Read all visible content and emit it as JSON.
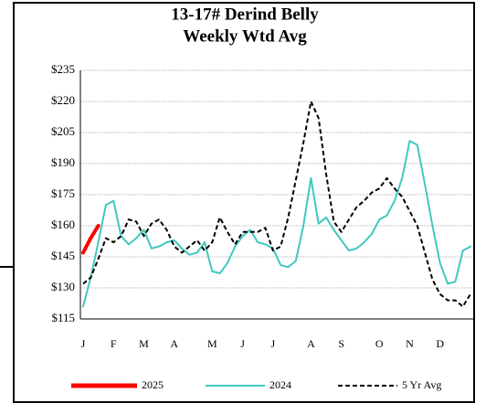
{
  "chart_data": {
    "type": "line",
    "title": "13-17# Derind Belly",
    "subtitle": "Weekly Wtd Avg",
    "categories": [
      "J",
      null,
      null,
      null,
      "F",
      null,
      null,
      null,
      "M",
      null,
      null,
      null,
      "A",
      null,
      null,
      null,
      null,
      "M",
      null,
      null,
      null,
      "J",
      null,
      null,
      null,
      "J",
      null,
      null,
      null,
      null,
      "A",
      null,
      null,
      null,
      "S",
      null,
      null,
      null,
      null,
      "O",
      null,
      null,
      null,
      "N",
      null,
      null,
      null,
      "D",
      null,
      null,
      null,
      null
    ],
    "series": [
      {
        "name": "2025",
        "color": "#ff0000",
        "dash": false,
        "width": 4,
        "values": [
          147,
          154,
          160,
          null,
          null,
          null,
          null,
          null,
          null,
          null,
          null,
          null,
          null,
          null,
          null,
          null,
          null,
          null,
          null,
          null,
          null,
          null,
          null,
          null,
          null,
          null,
          null,
          null,
          null,
          null,
          null,
          null,
          null,
          null,
          null,
          null,
          null,
          null,
          null,
          null,
          null,
          null,
          null,
          null,
          null,
          null,
          null,
          null,
          null,
          null,
          null,
          null
        ]
      },
      {
        "name": "2024",
        "color": "#40c8c0",
        "dash": false,
        "width": 2,
        "values": [
          121,
          135,
          152,
          170,
          172,
          155,
          151,
          154,
          158,
          149,
          150,
          152,
          153,
          149,
          146,
          147,
          152,
          138,
          137,
          142,
          150,
          155,
          158,
          152,
          151,
          149,
          141,
          140,
          143,
          160,
          183,
          161,
          164,
          158,
          153,
          148,
          149,
          152,
          156,
          163,
          165,
          172,
          183,
          201,
          199,
          180,
          160,
          142,
          132,
          133,
          148,
          150
        ]
      },
      {
        "name": "5 Yr Avg",
        "color": "#000000",
        "dash": true,
        "width": 2,
        "values": [
          132,
          135,
          144,
          154,
          152,
          155,
          163,
          162,
          155,
          161,
          163,
          158,
          150,
          147,
          150,
          153,
          148,
          152,
          164,
          157,
          151,
          157,
          157,
          157,
          159,
          148,
          150,
          164,
          182,
          200,
          220,
          212,
          185,
          162,
          157,
          163,
          169,
          172,
          176,
          178,
          183,
          178,
          174,
          167,
          160,
          147,
          134,
          127,
          124,
          124,
          121,
          127
        ]
      }
    ],
    "ylim": [
      115,
      235
    ],
    "yticks": [
      {
        "value": 115,
        "label": "$115"
      },
      {
        "value": 130,
        "label": "$130"
      },
      {
        "value": 145,
        "label": "$145"
      },
      {
        "value": 160,
        "label": "$160"
      },
      {
        "value": 175,
        "label": "$175"
      },
      {
        "value": 190,
        "label": "$190"
      },
      {
        "value": 205,
        "label": "$205"
      },
      {
        "value": 220,
        "label": "$220"
      },
      {
        "value": 235,
        "label": "$235"
      }
    ],
    "grid": true,
    "legend": "bottom"
  }
}
